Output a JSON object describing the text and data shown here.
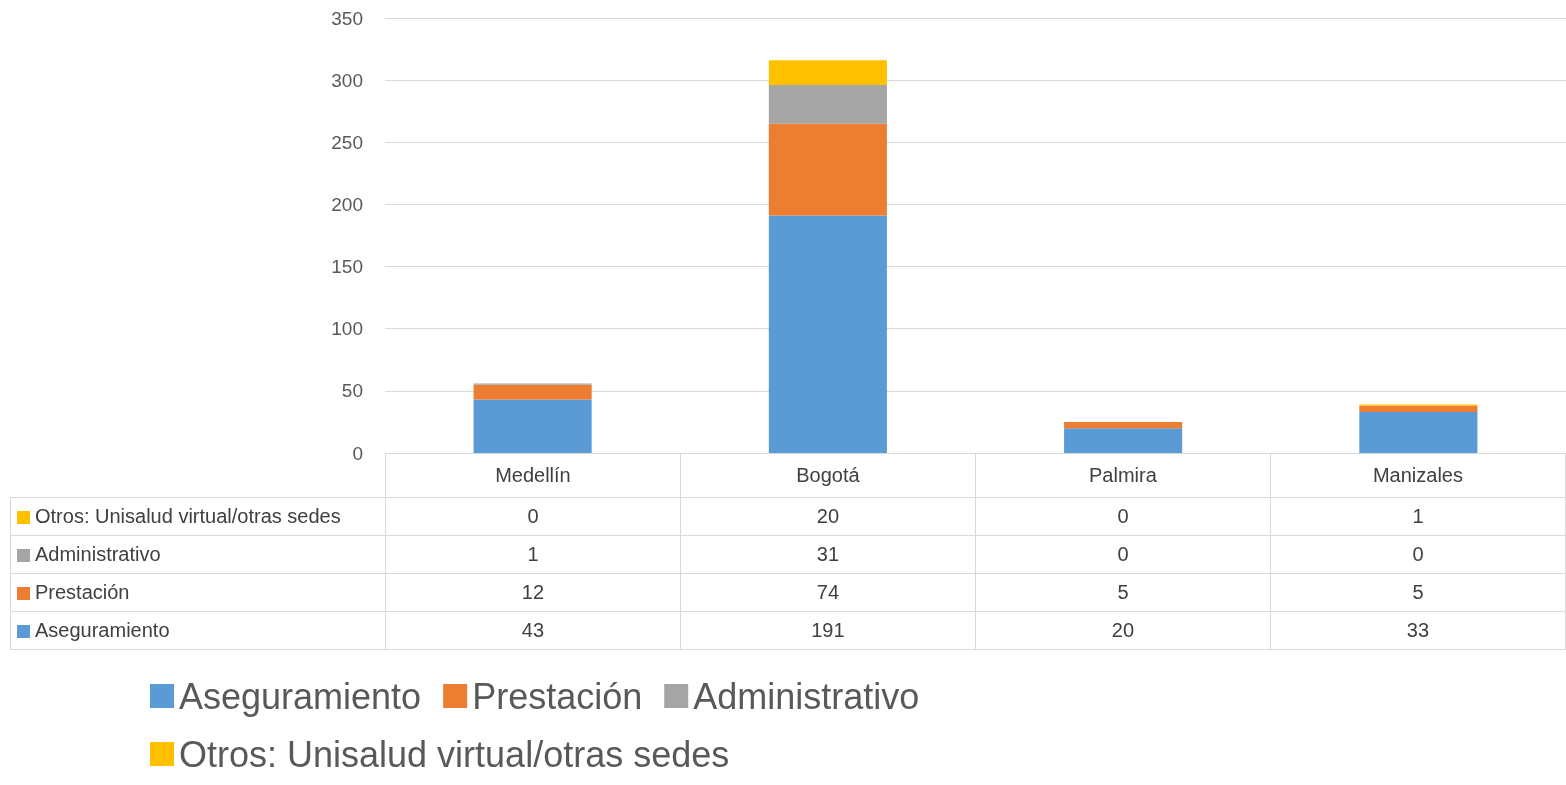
{
  "chart_data": {
    "type": "bar",
    "stacked": true,
    "categories": [
      "Medellín",
      "Bogotá",
      "Palmira",
      "Manizales"
    ],
    "series": [
      {
        "name": "Aseguramiento",
        "color": "#5b9bd5",
        "values": [
          43,
          191,
          20,
          33
        ]
      },
      {
        "name": "Prestación",
        "color": "#ed7d31",
        "values": [
          12,
          74,
          5,
          5
        ]
      },
      {
        "name": "Administrativo",
        "color": "#a5a5a5",
        "values": [
          1,
          31,
          0,
          0
        ]
      },
      {
        "name": "Otros: Unisalud virtual/otras sedes",
        "color": "#ffc000",
        "values": [
          0,
          20,
          0,
          1
        ]
      }
    ],
    "ylim": [
      0,
      350
    ],
    "yticks": [
      0,
      50,
      100,
      150,
      200,
      250,
      300,
      350
    ],
    "grid": "y",
    "legend": "bottom",
    "data_labels": true
  }
}
